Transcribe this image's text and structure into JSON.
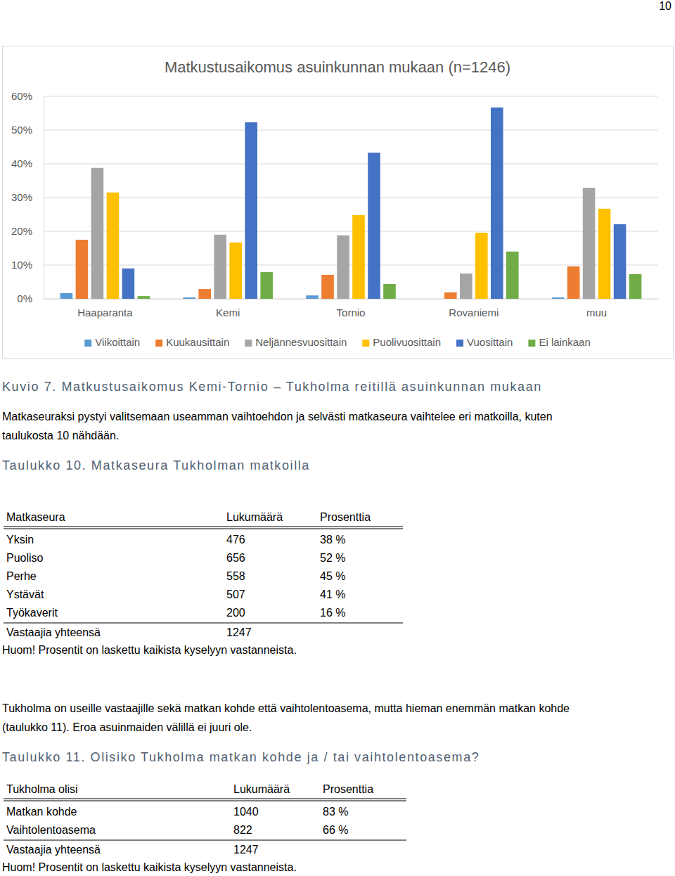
{
  "page_number": "10",
  "chart_data": {
    "type": "bar",
    "title": "Matkustusaikomus asuinkunnan mukaan (n=1246)",
    "categories": [
      "Haaparanta",
      "Kemi",
      "Tornio",
      "Rovaniemi",
      "muu"
    ],
    "series": [
      {
        "name": "Viikoittain",
        "color": "#5b9bd5",
        "values": [
          1.7,
          0.4,
          1.0,
          0.0,
          0.4
        ]
      },
      {
        "name": "Kuukausittain",
        "color": "#ed7d31",
        "values": [
          17.5,
          2.9,
          7.1,
          1.9,
          9.6
        ]
      },
      {
        "name": "Neljännesvuosittain",
        "color": "#a5a5a5",
        "values": [
          38.8,
          19.0,
          18.8,
          7.5,
          32.9
        ]
      },
      {
        "name": "Puolivuosittain",
        "color": "#ffc000",
        "values": [
          31.5,
          16.7,
          24.8,
          19.6,
          26.7
        ]
      },
      {
        "name": "Vuosittain",
        "color": "#4472c4",
        "values": [
          9.0,
          52.3,
          43.3,
          56.7,
          22.1
        ]
      },
      {
        "name": "Ei lainkaan",
        "color": "#70ad47",
        "values": [
          0.8,
          7.9,
          4.4,
          14.0,
          7.3
        ]
      }
    ],
    "ylim": [
      0,
      60
    ],
    "yticks": [
      {
        "value": 0,
        "label": "0%"
      },
      {
        "value": 10,
        "label": "10%"
      },
      {
        "value": 20,
        "label": "20%"
      },
      {
        "value": 30,
        "label": "30%"
      },
      {
        "value": 40,
        "label": "40%"
      },
      {
        "value": 50,
        "label": "50%"
      },
      {
        "value": 60,
        "label": "60%"
      }
    ],
    "grid": true,
    "legend": "bottom"
  },
  "figure_caption": "Kuvio 7. Matkustusaikomus Kemi-Tornio – Tukholma reitillä asuinkunnan mukaan",
  "paragraphs": [
    [
      "Matkaseuraksi pystyi valitsemaan useamman vaihtoehdon ja selvästi matkaseura vaihtelee eri matkoilla, kuten",
      "taulukosta 10 nähdään."
    ],
    [
      "Tukholma on useille vastaajille sekä matkan kohde että vaihtolentoasema, mutta hieman enemmän matkan kohde",
      "(taulukko 11). Eroa asuinmaiden välillä ei juuri ole."
    ]
  ],
  "tables": [
    {
      "caption": "Taulukko 10. Matkaseura Tukholman matkoilla",
      "columns": [
        "Matkaseura",
        "Lukumäärä",
        "Prosenttia"
      ],
      "rows": [
        [
          "Yksin",
          "476",
          "38 %"
        ],
        [
          "Puoliso",
          "656",
          "52 %"
        ],
        [
          "Perhe",
          "558",
          "45 %"
        ],
        [
          "Ystävät",
          "507",
          "41 %"
        ],
        [
          "Työkaverit",
          "200",
          "16 %"
        ]
      ],
      "total": [
        "Vastaajia yhteensä",
        "1247"
      ],
      "note": "Huom! Prosentit on laskettu kaikista kyselyyn vastanneista."
    },
    {
      "caption": "Taulukko 11. Olisiko Tukholma matkan kohde ja / tai vaihtolentoasema?",
      "columns": [
        "Tukholma olisi",
        "Lukumäärä",
        "Prosenttia"
      ],
      "rows": [
        [
          "Matkan kohde",
          "1040",
          "83 %"
        ],
        [
          "Vaihtolentoasema",
          "822",
          "66 %"
        ]
      ],
      "total": [
        "Vastaajia yhteensä",
        "1247"
      ],
      "note": "Huom! Prosentit on laskettu kaikista kyselyyn vastanneista."
    }
  ]
}
